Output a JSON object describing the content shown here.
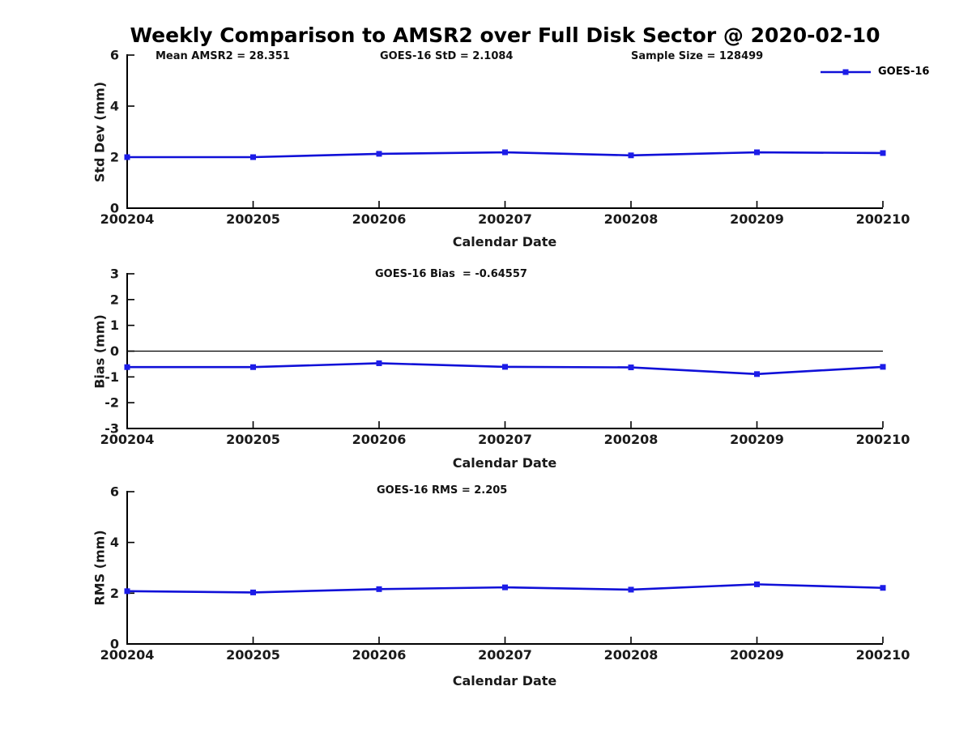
{
  "figure": {
    "title": "Weekly Comparison to AMSR2 over Full Disk Sector @ 2020-02-10"
  },
  "legend": {
    "label": "GOES-16",
    "position": "top-right"
  },
  "colors": {
    "line": "#1010d8",
    "marker": "#1c1ce8",
    "axis": "#000000",
    "text": "#1a1a1a",
    "zero_line": "#000000"
  },
  "chart_data": [
    {
      "type": "line",
      "panel": "std_dev",
      "annotations": [
        "Mean AMSR2 = 28.351",
        "GOES-16 StD = 2.1084",
        "Sample Size = 128499"
      ],
      "categories": [
        "200204",
        "200205",
        "200206",
        "200207",
        "200208",
        "200209",
        "200210"
      ],
      "series": [
        {
          "name": "GOES-16",
          "values": [
            2.0,
            2.0,
            2.13,
            2.19,
            2.07,
            2.19,
            2.16
          ]
        }
      ],
      "xlabel": "Calendar Date",
      "ylabel": "Std Dev (mm)",
      "ylim": [
        0,
        6
      ],
      "yticks": [
        0,
        2,
        4,
        6
      ],
      "grid": false,
      "zero_line": false,
      "legend_position": "top-right"
    },
    {
      "type": "line",
      "panel": "bias",
      "annotations": [
        "GOES-16 Bias  = -0.64557"
      ],
      "categories": [
        "200204",
        "200205",
        "200206",
        "200207",
        "200208",
        "200209",
        "200210"
      ],
      "series": [
        {
          "name": "GOES-16",
          "values": [
            -0.62,
            -0.62,
            -0.47,
            -0.61,
            -0.63,
            -0.89,
            -0.61
          ]
        }
      ],
      "xlabel": "Calendar Date",
      "ylabel": "Bias (mm)",
      "ylim": [
        -3,
        3
      ],
      "yticks": [
        -3,
        -2,
        -1,
        0,
        1,
        2,
        3
      ],
      "grid": false,
      "zero_line": true,
      "legend_position": "none"
    },
    {
      "type": "line",
      "panel": "rms",
      "annotations": [
        "GOES-16 RMS = 2.205"
      ],
      "categories": [
        "200204",
        "200205",
        "200206",
        "200207",
        "200208",
        "200209",
        "200210"
      ],
      "series": [
        {
          "name": "GOES-16",
          "values": [
            2.08,
            2.03,
            2.16,
            2.23,
            2.14,
            2.35,
            2.21
          ]
        }
      ],
      "xlabel": "Calendar Date",
      "ylabel": "RMS (mm)",
      "ylim": [
        0,
        6
      ],
      "yticks": [
        0,
        2,
        4,
        6
      ],
      "grid": false,
      "zero_line": false,
      "legend_position": "none"
    }
  ]
}
